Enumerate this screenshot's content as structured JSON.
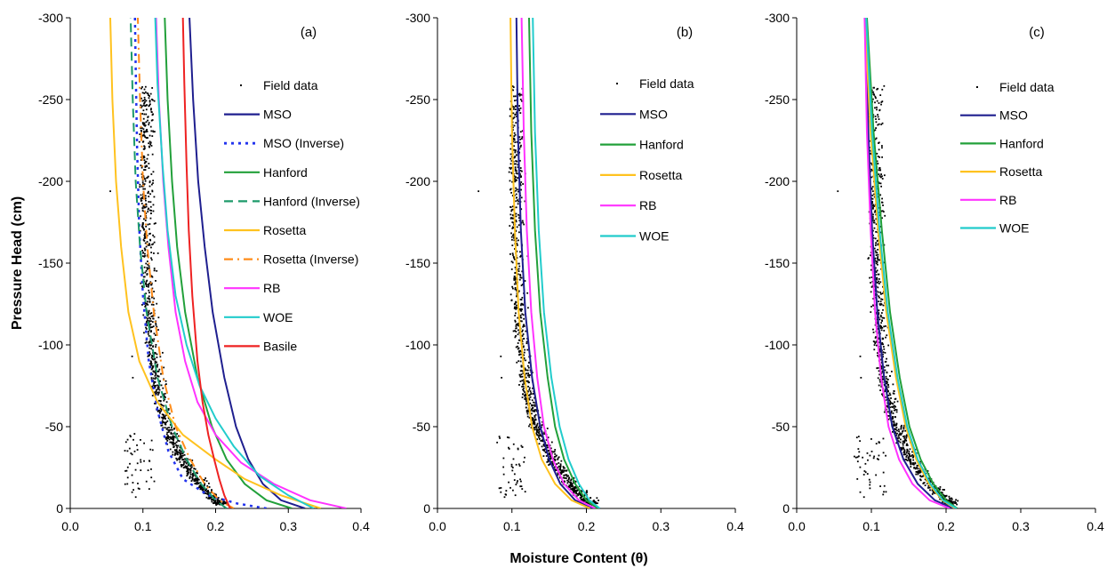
{
  "figure": {
    "xlabel": "Moisture Content (θ)",
    "ylabel": "Pressure Head (cm)"
  },
  "chart_data": [
    {
      "type": "line",
      "panel_label": "(a)",
      "xlim": [
        0.0,
        0.4
      ],
      "ylim": [
        0,
        -300
      ],
      "x_ticks": [
        "0.0",
        "0.1",
        "0.2",
        "0.3",
        "0.4"
      ],
      "y_ticks": [
        "0",
        "-50",
        "-100",
        "-150",
        "-200",
        "-250",
        "-300"
      ],
      "legend_position": "right",
      "legend": [
        "Field data",
        "MSO",
        "MSO (Inverse)",
        "Hanford",
        "Hanford (Inverse)",
        "Rosetta",
        "Rosetta (Inverse)",
        "RB",
        "WOE",
        "Basile"
      ],
      "series": [
        {
          "name": "MSO",
          "color": "#1f1f8f",
          "dash": "solid",
          "points": [
            [
              0.323,
              0
            ],
            [
              0.29,
              -5
            ],
            [
              0.265,
              -15
            ],
            [
              0.245,
              -30
            ],
            [
              0.228,
              -50
            ],
            [
              0.212,
              -80
            ],
            [
              0.196,
              -120
            ],
            [
              0.185,
              -160
            ],
            [
              0.176,
              -200
            ],
            [
              0.169,
              -250
            ],
            [
              0.164,
              -300
            ]
          ]
        },
        {
          "name": "MSO (Inverse)",
          "color": "#2233ee",
          "dash": "dotted",
          "points": [
            [
              0.27,
              0
            ],
            [
              0.23,
              -3
            ],
            [
              0.19,
              -8
            ],
            [
              0.155,
              -18
            ],
            [
              0.135,
              -35
            ],
            [
              0.12,
              -60
            ],
            [
              0.108,
              -90
            ],
            [
              0.1,
              -130
            ],
            [
              0.095,
              -170
            ],
            [
              0.092,
              -220
            ],
            [
              0.09,
              -270
            ],
            [
              0.089,
              -300
            ]
          ]
        },
        {
          "name": "Hanford",
          "color": "#22a03a",
          "dash": "solid",
          "points": [
            [
              0.305,
              0
            ],
            [
              0.27,
              -5
            ],
            [
              0.24,
              -15
            ],
            [
              0.215,
              -30
            ],
            [
              0.195,
              -50
            ],
            [
              0.175,
              -80
            ],
            [
              0.158,
              -120
            ],
            [
              0.147,
              -160
            ],
            [
              0.14,
              -200
            ],
            [
              0.134,
              -250
            ],
            [
              0.13,
              -300
            ]
          ]
        },
        {
          "name": "Hanford (Inverse)",
          "color": "#1d9a6a",
          "dash": "dashed",
          "points": [
            [
              0.215,
              0
            ],
            [
              0.2,
              -5
            ],
            [
              0.18,
              -15
            ],
            [
              0.16,
              -30
            ],
            [
              0.14,
              -50
            ],
            [
              0.12,
              -80
            ],
            [
              0.105,
              -120
            ],
            [
              0.096,
              -160
            ],
            [
              0.09,
              -200
            ],
            [
              0.086,
              -250
            ],
            [
              0.083,
              -300
            ]
          ]
        },
        {
          "name": "Rosetta",
          "color": "#ffc21f",
          "dash": "solid",
          "points": [
            [
              0.345,
              0
            ],
            [
              0.29,
              -8
            ],
            [
              0.24,
              -18
            ],
            [
              0.2,
              -30
            ],
            [
              0.155,
              -45
            ],
            [
              0.12,
              -65
            ],
            [
              0.095,
              -90
            ],
            [
              0.08,
              -120
            ],
            [
              0.07,
              -160
            ],
            [
              0.063,
              -200
            ],
            [
              0.058,
              -250
            ],
            [
              0.055,
              -300
            ]
          ]
        },
        {
          "name": "Rosetta (Inverse)",
          "color": "#ff8c1a",
          "dash": "dashdot",
          "points": [
            [
              0.225,
              0
            ],
            [
              0.205,
              -5
            ],
            [
              0.185,
              -15
            ],
            [
              0.165,
              -30
            ],
            [
              0.145,
              -50
            ],
            [
              0.128,
              -80
            ],
            [
              0.115,
              -120
            ],
            [
              0.106,
              -160
            ],
            [
              0.1,
              -200
            ],
            [
              0.096,
              -250
            ],
            [
              0.093,
              -300
            ]
          ]
        },
        {
          "name": "RB",
          "color": "#ff33ff",
          "dash": "solid",
          "points": [
            [
              0.38,
              0
            ],
            [
              0.33,
              -5
            ],
            [
              0.28,
              -15
            ],
            [
              0.235,
              -28
            ],
            [
              0.2,
              -45
            ],
            [
              0.175,
              -65
            ],
            [
              0.158,
              -90
            ],
            [
              0.145,
              -120
            ],
            [
              0.135,
              -160
            ],
            [
              0.128,
              -200
            ],
            [
              0.122,
              -250
            ],
            [
              0.118,
              -300
            ]
          ]
        },
        {
          "name": "WOE",
          "color": "#22cccc",
          "dash": "solid",
          "points": [
            [
              0.335,
              0
            ],
            [
              0.3,
              -8
            ],
            [
              0.26,
              -20
            ],
            [
              0.225,
              -38
            ],
            [
              0.2,
              -55
            ],
            [
              0.178,
              -75
            ],
            [
              0.16,
              -100
            ],
            [
              0.145,
              -130
            ],
            [
              0.134,
              -170
            ],
            [
              0.127,
              -210
            ],
            [
              0.12,
              -260
            ],
            [
              0.117,
              -300
            ]
          ]
        },
        {
          "name": "Basile",
          "color": "#ee2222",
          "dash": "solid",
          "points": [
            [
              0.22,
              0
            ],
            [
              0.212,
              -8
            ],
            [
              0.205,
              -18
            ],
            [
              0.198,
              -30
            ],
            [
              0.19,
              -45
            ],
            [
              0.182,
              -65
            ],
            [
              0.175,
              -90
            ],
            [
              0.168,
              -130
            ],
            [
              0.163,
              -170
            ],
            [
              0.16,
              -210
            ],
            [
              0.157,
              -260
            ],
            [
              0.155,
              -300
            ]
          ]
        }
      ]
    },
    {
      "type": "line",
      "panel_label": "(b)",
      "xlim": [
        0.0,
        0.4
      ],
      "ylim": [
        0,
        -300
      ],
      "x_ticks": [
        "0.0",
        "0.1",
        "0.2",
        "0.3",
        "0.4"
      ],
      "y_ticks": [
        "0",
        "-50",
        "-100",
        "-150",
        "-200",
        "-250",
        "-300"
      ],
      "legend_position": "right",
      "legend": [
        "Field data",
        "MSO",
        "Hanford",
        "Rosetta",
        "RB",
        "WOE"
      ],
      "series": [
        {
          "name": "MSO",
          "color": "#1f1f8f",
          "dash": "solid",
          "points": [
            [
              0.208,
              0
            ],
            [
              0.185,
              -5
            ],
            [
              0.165,
              -15
            ],
            [
              0.15,
              -30
            ],
            [
              0.138,
              -50
            ],
            [
              0.127,
              -80
            ],
            [
              0.118,
              -120
            ],
            [
              0.112,
              -170
            ],
            [
              0.108,
              -230
            ],
            [
              0.106,
              -300
            ]
          ]
        },
        {
          "name": "Hanford",
          "color": "#22a03a",
          "dash": "solid",
          "points": [
            [
              0.215,
              0
            ],
            [
              0.2,
              -5
            ],
            [
              0.185,
              -15
            ],
            [
              0.17,
              -30
            ],
            [
              0.158,
              -50
            ],
            [
              0.148,
              -80
            ],
            [
              0.138,
              -120
            ],
            [
              0.131,
              -170
            ],
            [
              0.126,
              -230
            ],
            [
              0.123,
              -300
            ]
          ]
        },
        {
          "name": "Rosetta",
          "color": "#ffc21f",
          "dash": "solid",
          "points": [
            [
              0.205,
              0
            ],
            [
              0.18,
              -5
            ],
            [
              0.158,
              -15
            ],
            [
              0.14,
              -30
            ],
            [
              0.127,
              -50
            ],
            [
              0.117,
              -80
            ],
            [
              0.109,
              -120
            ],
            [
              0.104,
              -170
            ],
            [
              0.1,
              -230
            ],
            [
              0.098,
              -300
            ]
          ]
        },
        {
          "name": "RB",
          "color": "#ff33ff",
          "dash": "solid",
          "points": [
            [
              0.212,
              0
            ],
            [
              0.19,
              -5
            ],
            [
              0.17,
              -15
            ],
            [
              0.155,
              -30
            ],
            [
              0.143,
              -50
            ],
            [
              0.134,
              -80
            ],
            [
              0.126,
              -120
            ],
            [
              0.12,
              -170
            ],
            [
              0.116,
              -230
            ],
            [
              0.113,
              -300
            ]
          ]
        },
        {
          "name": "WOE",
          "color": "#22cccc",
          "dash": "solid",
          "points": [
            [
              0.218,
              0
            ],
            [
              0.204,
              -5
            ],
            [
              0.19,
              -15
            ],
            [
              0.176,
              -30
            ],
            [
              0.164,
              -50
            ],
            [
              0.153,
              -80
            ],
            [
              0.143,
              -120
            ],
            [
              0.136,
              -170
            ],
            [
              0.131,
              -230
            ],
            [
              0.128,
              -300
            ]
          ]
        }
      ]
    },
    {
      "type": "line",
      "panel_label": "(c)",
      "xlim": [
        0.0,
        0.4
      ],
      "ylim": [
        0,
        -300
      ],
      "x_ticks": [
        "0.0",
        "0.1",
        "0.2",
        "0.3",
        "0.4"
      ],
      "y_ticks": [
        "0",
        "-50",
        "-100",
        "-150",
        "-200",
        "-250",
        "-300"
      ],
      "legend_position": "right",
      "legend": [
        "Field data",
        "MSO",
        "Hanford",
        "Rosetta",
        "RB",
        "WOE"
      ],
      "series": [
        {
          "name": "MSO",
          "color": "#1f1f8f",
          "dash": "solid",
          "points": [
            [
              0.21,
              0
            ],
            [
              0.185,
              -5
            ],
            [
              0.162,
              -15
            ],
            [
              0.143,
              -30
            ],
            [
              0.128,
              -50
            ],
            [
              0.117,
              -80
            ],
            [
              0.108,
              -120
            ],
            [
              0.101,
              -170
            ],
            [
              0.096,
              -230
            ],
            [
              0.093,
              -300
            ]
          ]
        },
        {
          "name": "Hanford",
          "color": "#22a03a",
          "dash": "solid",
          "points": [
            [
              0.215,
              0
            ],
            [
              0.2,
              -5
            ],
            [
              0.183,
              -15
            ],
            [
              0.166,
              -30
            ],
            [
              0.151,
              -50
            ],
            [
              0.138,
              -80
            ],
            [
              0.125,
              -120
            ],
            [
              0.114,
              -170
            ],
            [
              0.103,
              -230
            ],
            [
              0.094,
              -300
            ]
          ]
        },
        {
          "name": "Rosetta",
          "color": "#ffc21f",
          "dash": "solid",
          "points": [
            [
              0.212,
              0
            ],
            [
              0.195,
              -5
            ],
            [
              0.177,
              -15
            ],
            [
              0.16,
              -30
            ],
            [
              0.146,
              -50
            ],
            [
              0.133,
              -80
            ],
            [
              0.12,
              -120
            ],
            [
              0.109,
              -170
            ],
            [
              0.099,
              -230
            ],
            [
              0.091,
              -300
            ]
          ]
        },
        {
          "name": "RB",
          "color": "#ff33ff",
          "dash": "solid",
          "points": [
            [
              0.205,
              0
            ],
            [
              0.178,
              -5
            ],
            [
              0.155,
              -15
            ],
            [
              0.137,
              -30
            ],
            [
              0.123,
              -50
            ],
            [
              0.113,
              -80
            ],
            [
              0.105,
              -120
            ],
            [
              0.099,
              -170
            ],
            [
              0.094,
              -230
            ],
            [
              0.091,
              -300
            ]
          ]
        },
        {
          "name": "WOE",
          "color": "#22cccc",
          "dash": "solid",
          "points": [
            [
              0.214,
              0
            ],
            [
              0.196,
              -5
            ],
            [
              0.179,
              -15
            ],
            [
              0.162,
              -30
            ],
            [
              0.148,
              -50
            ],
            [
              0.135,
              -80
            ],
            [
              0.122,
              -120
            ],
            [
              0.111,
              -170
            ],
            [
              0.101,
              -230
            ],
            [
              0.093,
              -300
            ]
          ]
        }
      ]
    }
  ]
}
